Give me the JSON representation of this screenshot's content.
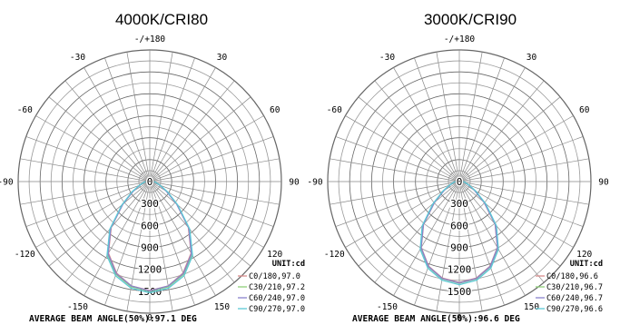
{
  "chart_data": [
    {
      "type": "polar",
      "title": "4000K/CRI80",
      "unit_label": "UNIT:cd",
      "angle_labels": [
        "-/+180",
        "150",
        "120",
        "90",
        "60",
        "30",
        "0",
        "-30",
        "-60",
        "-90",
        "-120",
        "-150"
      ],
      "radial_ticks": [
        "0",
        "300",
        "600",
        "900",
        "1200",
        "1500"
      ],
      "radial_max": 1800,
      "footer": "AVERAGE BEAM ANGLE(50%):97.1 DEG",
      "series": [
        {
          "name": "C0/180,97.0",
          "color": "#d98c8c",
          "angles": [
            -90,
            -80,
            -70,
            -60,
            -50,
            -40,
            -30,
            -20,
            -10,
            0,
            10,
            20,
            30,
            40,
            50,
            60,
            70,
            80,
            90
          ],
          "values": [
            60,
            90,
            140,
            260,
            480,
            820,
            1130,
            1330,
            1450,
            1490,
            1450,
            1330,
            1130,
            820,
            480,
            260,
            140,
            90,
            60
          ]
        },
        {
          "name": "C30/210,97.2",
          "color": "#8fcf7a",
          "angles": [
            -90,
            -80,
            -70,
            -60,
            -50,
            -40,
            -30,
            -20,
            -10,
            0,
            10,
            20,
            30,
            40,
            50,
            60,
            70,
            80,
            90
          ],
          "values": [
            60,
            90,
            140,
            270,
            490,
            840,
            1150,
            1350,
            1460,
            1500,
            1460,
            1350,
            1150,
            840,
            490,
            270,
            140,
            90,
            60
          ]
        },
        {
          "name": "C60/240,97.0",
          "color": "#8a82cc",
          "angles": [
            -90,
            -80,
            -70,
            -60,
            -50,
            -40,
            -30,
            -20,
            -10,
            0,
            10,
            20,
            30,
            40,
            50,
            60,
            70,
            80,
            90
          ],
          "values": [
            60,
            90,
            140,
            260,
            480,
            830,
            1140,
            1340,
            1450,
            1495,
            1450,
            1340,
            1140,
            830,
            480,
            260,
            140,
            90,
            60
          ]
        },
        {
          "name": "C90/270,97.0",
          "color": "#5cc8d6",
          "angles": [
            -90,
            -80,
            -70,
            -60,
            -50,
            -40,
            -30,
            -20,
            -10,
            0,
            10,
            20,
            30,
            40,
            50,
            60,
            70,
            80,
            90
          ],
          "values": [
            60,
            90,
            150,
            280,
            500,
            850,
            1170,
            1370,
            1480,
            1520,
            1480,
            1370,
            1170,
            850,
            500,
            280,
            150,
            90,
            60
          ]
        }
      ]
    },
    {
      "type": "polar",
      "title": "3000K/CRI90",
      "unit_label": "UNIT:cd",
      "angle_labels": [
        "-/+180",
        "150",
        "120",
        "90",
        "60",
        "30",
        "0",
        "-30",
        "-60",
        "-90",
        "-120",
        "-150"
      ],
      "radial_ticks": [
        "0",
        "300",
        "600",
        "900",
        "1200",
        "1500"
      ],
      "radial_max": 1800,
      "footer": "AVERAGE BEAM ANGLE(50%):96.6 DEG",
      "series": [
        {
          "name": "C0/180,96.6",
          "color": "#d98c8c",
          "angles": [
            -90,
            -80,
            -70,
            -60,
            -50,
            -40,
            -30,
            -20,
            -10,
            0,
            10,
            20,
            30,
            40,
            50,
            60,
            70,
            80,
            90
          ],
          "values": [
            55,
            80,
            130,
            240,
            440,
            760,
            1040,
            1230,
            1340,
            1380,
            1340,
            1230,
            1040,
            760,
            440,
            240,
            130,
            80,
            55
          ]
        },
        {
          "name": "C30/210,96.7",
          "color": "#8fcf7a",
          "angles": [
            -90,
            -80,
            -70,
            -60,
            -50,
            -40,
            -30,
            -20,
            -10,
            0,
            10,
            20,
            30,
            40,
            50,
            60,
            70,
            80,
            90
          ],
          "values": [
            55,
            80,
            130,
            245,
            450,
            770,
            1050,
            1240,
            1350,
            1390,
            1350,
            1240,
            1050,
            770,
            450,
            245,
            130,
            80,
            55
          ]
        },
        {
          "name": "C60/240,96.7",
          "color": "#8a82cc",
          "angles": [
            -90,
            -80,
            -70,
            -60,
            -50,
            -40,
            -30,
            -20,
            -10,
            0,
            10,
            20,
            30,
            40,
            50,
            60,
            70,
            80,
            90
          ],
          "values": [
            55,
            80,
            130,
            240,
            445,
            765,
            1045,
            1235,
            1345,
            1385,
            1345,
            1235,
            1045,
            765,
            445,
            240,
            130,
            80,
            55
          ]
        },
        {
          "name": "C90/270,96.6",
          "color": "#5cc8d6",
          "angles": [
            -90,
            -80,
            -70,
            -60,
            -50,
            -40,
            -30,
            -20,
            -10,
            0,
            10,
            20,
            30,
            40,
            50,
            60,
            70,
            80,
            90
          ],
          "values": [
            55,
            85,
            140,
            260,
            470,
            790,
            1070,
            1260,
            1370,
            1410,
            1370,
            1260,
            1070,
            790,
            470,
            260,
            140,
            85,
            55
          ]
        }
      ]
    }
  ]
}
